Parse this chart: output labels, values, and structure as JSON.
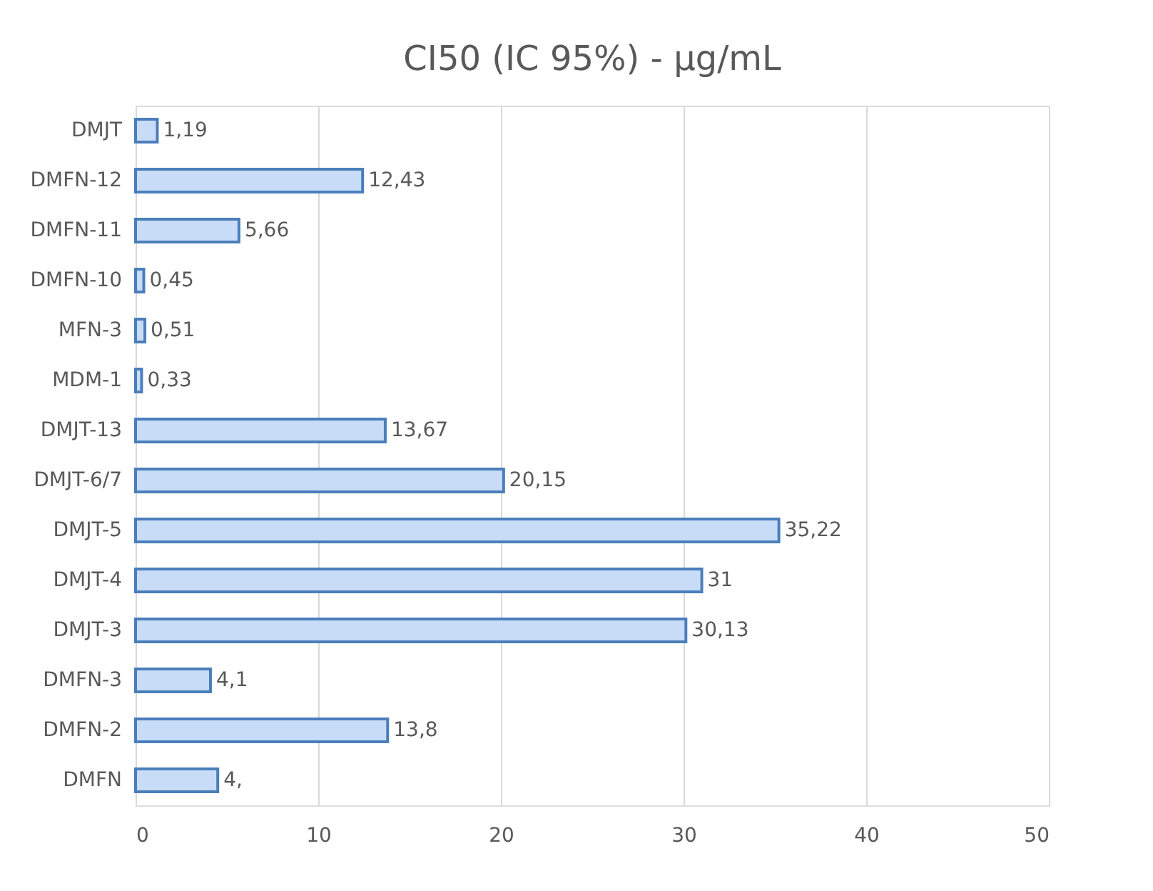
{
  "chart_data": {
    "type": "bar",
    "orientation": "horizontal",
    "title": "CI50 (IC 95%) -  µg/mL",
    "categories": [
      "DMJT",
      "DMFN-12",
      "DMFN-11",
      "DMFN-10",
      "MFN-3",
      "MDM-1",
      "DMJT-13",
      "DMJT-6/7",
      "DMJT-5",
      "DMJT-4",
      "DMJT-3",
      "DMFN-3",
      "DMFN-2",
      "DMFN"
    ],
    "values": [
      1.19,
      12.43,
      5.66,
      0.45,
      0.51,
      0.33,
      13.67,
      20.15,
      35.22,
      31,
      30.13,
      4.1,
      13.8,
      4.5
    ],
    "value_labels": [
      "1,19",
      "12,43",
      "5,66",
      "0,45",
      "0,51",
      "0,33",
      "13,67",
      "20,15",
      "35,22",
      "31",
      "30,13",
      "4,1",
      "13,8",
      "4,"
    ],
    "color": "#c9dcf7",
    "xlim": [
      0,
      50
    ],
    "xticks": [
      0,
      10,
      20,
      30,
      40,
      50
    ],
    "grid": "x"
  }
}
